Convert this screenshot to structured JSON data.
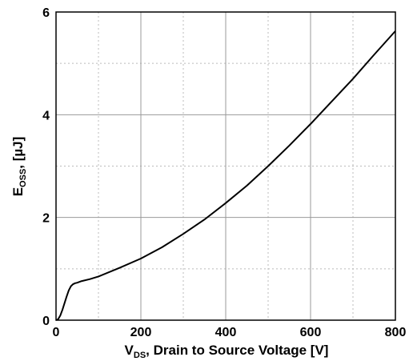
{
  "chart_data": {
    "type": "line",
    "title": "",
    "xlabel": {
      "main": "V",
      "sub": "DS",
      "rest": ", Drain to Source Voltage [V]"
    },
    "ylabel": {
      "main": "E",
      "sub": "OSS",
      "rest": ", [µJ]"
    },
    "xlim": [
      0,
      800
    ],
    "ylim": [
      0,
      6
    ],
    "x_major_ticks": [
      0,
      200,
      400,
      600,
      800
    ],
    "x_tick_labels": [
      "0",
      "200",
      "400",
      "600",
      "800"
    ],
    "x_minor_ticks": [
      100,
      300,
      500,
      700
    ],
    "y_major_ticks": [
      0,
      2,
      4,
      6
    ],
    "y_tick_labels": [
      "0",
      "2",
      "4",
      "6"
    ],
    "y_minor_ticks": [
      1,
      3,
      5
    ],
    "grid": true,
    "legend": "none",
    "series": [
      {
        "x": [
          0,
          5,
          10,
          15,
          20,
          25,
          30,
          35,
          40,
          45,
          50,
          60,
          80,
          100,
          150,
          200,
          250,
          300,
          350,
          400,
          450,
          500,
          550,
          600,
          650,
          700,
          750,
          800
        ],
        "y": [
          0.0,
          0.02,
          0.09,
          0.2,
          0.33,
          0.46,
          0.58,
          0.66,
          0.7,
          0.72,
          0.73,
          0.76,
          0.8,
          0.85,
          1.02,
          1.2,
          1.42,
          1.68,
          1.96,
          2.28,
          2.62,
          3.0,
          3.4,
          3.82,
          4.26,
          4.7,
          5.17,
          5.63
        ],
        "color": "#000000"
      }
    ]
  }
}
